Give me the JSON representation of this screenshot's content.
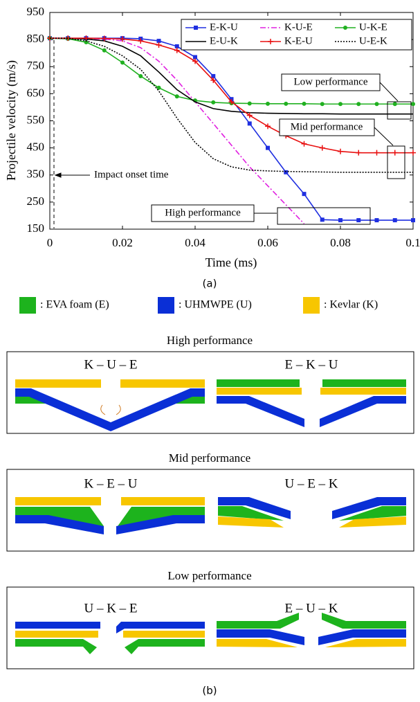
{
  "chart_data": {
    "type": "line",
    "xlabel": "Time (ms)",
    "ylabel": "Projectile velocity (m/s)",
    "x": [
      0,
      0.005,
      0.01,
      0.015,
      0.02,
      0.025,
      0.03,
      0.035,
      0.04,
      0.045,
      0.05,
      0.055,
      0.06,
      0.065,
      0.07,
      0.075,
      0.08,
      0.085,
      0.09,
      0.095,
      0.1
    ],
    "xlim": [
      0,
      0.1
    ],
    "xticks": [
      0,
      0.02,
      0.04,
      0.06,
      0.08,
      0.1
    ],
    "ylim": [
      150,
      950
    ],
    "yticks": [
      150,
      250,
      350,
      450,
      550,
      650,
      750,
      850,
      950
    ],
    "grid": false,
    "legend": "upper right",
    "series": [
      {
        "name": "E-K-U",
        "color": "#1f2fe0",
        "line_style": "solid",
        "marker": "square",
        "values": [
          855,
          855,
          855,
          855,
          855,
          853,
          845,
          825,
          785,
          715,
          630,
          540,
          450,
          360,
          280,
          185,
          183,
          183,
          183,
          183,
          183
        ]
      },
      {
        "name": "K-U-E",
        "color": "#e020e0",
        "line_style": "dashdot",
        "marker": "none",
        "values": [
          855,
          855,
          854,
          852,
          845,
          820,
          770,
          700,
          620,
          540,
          460,
          380,
          310,
          240,
          170,
          null,
          null,
          null,
          null,
          null,
          null
        ]
      },
      {
        "name": "U-K-E",
        "color": "#20b020",
        "line_style": "solid",
        "marker": "circle",
        "values": [
          855,
          853,
          840,
          810,
          765,
          715,
          672,
          640,
          625,
          618,
          615,
          614,
          613,
          613,
          613,
          612,
          612,
          612,
          612,
          612,
          612
        ]
      },
      {
        "name": "E-U-K",
        "color": "#000000",
        "line_style": "solid",
        "marker": "none",
        "values": [
          855,
          854,
          852,
          845,
          825,
          790,
          730,
          665,
          620,
          595,
          585,
          580,
          578,
          577,
          576,
          576,
          575,
          575,
          575,
          575,
          575
        ]
      },
      {
        "name": "K-E-U",
        "color": "#e81010",
        "line_style": "solid",
        "marker": "plus",
        "values": [
          855,
          855,
          855,
          854,
          852,
          845,
          830,
          810,
          770,
          700,
          620,
          570,
          530,
          495,
          465,
          450,
          437,
          432,
          432,
          432,
          432
        ]
      },
      {
        "name": "U-E-K",
        "color": "#000000",
        "line_style": "dotted",
        "marker": "none",
        "values": [
          855,
          855,
          845,
          825,
          790,
          740,
          660,
          560,
          470,
          410,
          380,
          368,
          365,
          363,
          362,
          361,
          360,
          360,
          360,
          360,
          360
        ]
      }
    ],
    "annotations": [
      "Low performance",
      "Mid performance",
      "High performance",
      "Impact onset time"
    ]
  },
  "caption_a": "(a)",
  "materials": [
    {
      "label": ": EVA foam (E)",
      "color": "#1db31d"
    },
    {
      "label": ": UHMWPE (U)",
      "color": "#0a2fd6"
    },
    {
      "label": ": Kevlar (K)",
      "color": "#f7c600"
    }
  ],
  "panels": [
    {
      "title": "High performance",
      "configs": [
        "K – U – E",
        "E – K – U"
      ]
    },
    {
      "title": "Mid performance",
      "configs": [
        "K – E – U",
        "U – E – K"
      ]
    },
    {
      "title": "Low performance",
      "configs": [
        "U – K – E",
        "E – U – K"
      ]
    }
  ],
  "caption_b": "(b)"
}
